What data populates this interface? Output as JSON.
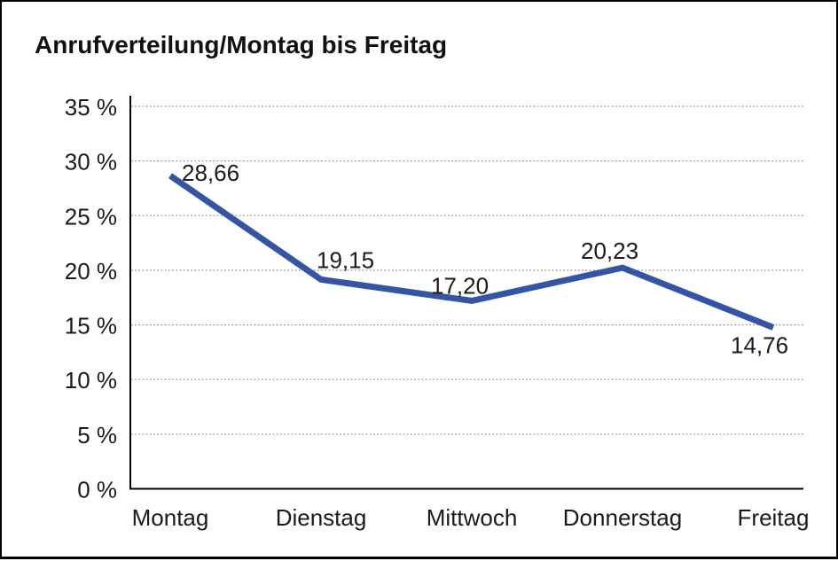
{
  "page": {
    "background": "#ffffff",
    "frame_color": "#000000"
  },
  "chart_data": {
    "type": "line",
    "title": "Anrufverteilung/Montag bis Freitag",
    "categories": [
      "Montag",
      "Dienstag",
      "Mittwoch",
      "Donnerstag",
      "Freitag"
    ],
    "series": [
      {
        "name": "Anrufverteilung",
        "values": [
          28.66,
          19.15,
          17.2,
          20.23,
          14.76
        ]
      }
    ],
    "data_labels": [
      "28,66",
      "19,15",
      "17,20",
      "20,23",
      "14,76"
    ],
    "y_ticks": [
      {
        "value": 35,
        "label": "35 %"
      },
      {
        "value": 30,
        "label": "30 %"
      },
      {
        "value": 25,
        "label": "25 %"
      },
      {
        "value": 20,
        "label": "20 %"
      },
      {
        "value": 15,
        "label": "15 %"
      },
      {
        "value": 10,
        "label": "10 %"
      },
      {
        "value": 5,
        "label": "5 %"
      },
      {
        "value": 0,
        "label": "0 %"
      }
    ],
    "ylim": [
      0,
      35
    ],
    "xlabel": "",
    "ylabel": "",
    "legend": "none",
    "grid": "horizontal-dotted",
    "colors": {
      "line": "#3455A4",
      "axis": "#000000",
      "grid": "#8f8f8f",
      "text": "#1a1a1a"
    }
  }
}
